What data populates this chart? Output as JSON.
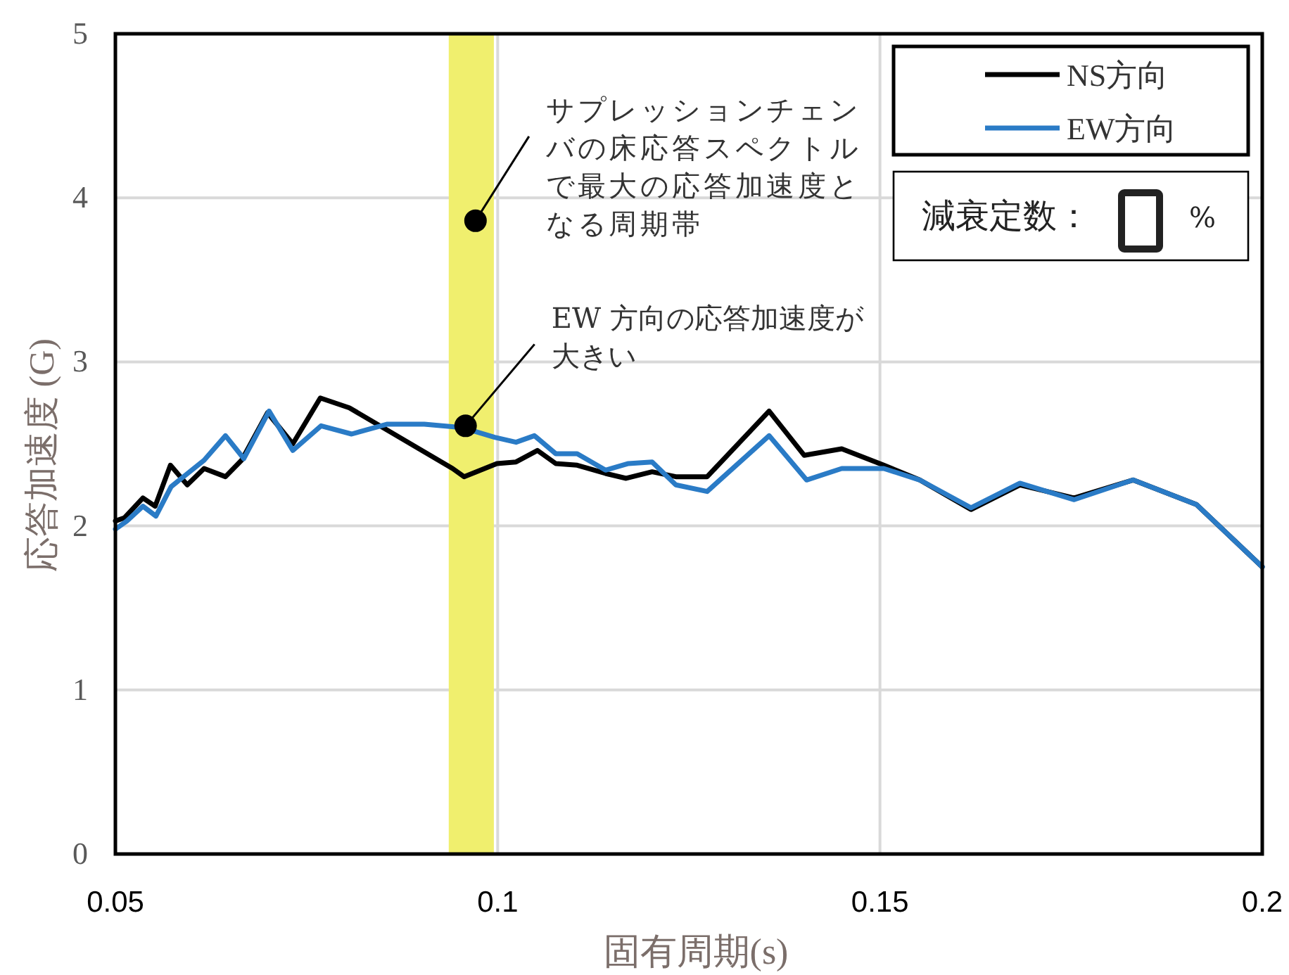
{
  "chart_data": {
    "type": "line",
    "xlabel": "固有周期(s)",
    "ylabel": "応答加速度 (G)",
    "xlim": [
      0.05,
      0.2
    ],
    "ylim": [
      0,
      5
    ],
    "xticks": [
      0.05,
      0.1,
      0.15,
      0.2
    ],
    "yticks": [
      0,
      1,
      2,
      3,
      4,
      5
    ],
    "grid": true,
    "legend": "top right",
    "series": [
      {
        "name": "NS方向",
        "color": "#000000",
        "x": [
          0.05,
          0.0512,
          0.0536,
          0.0552,
          0.0572,
          0.0594,
          0.0616,
          0.0644,
          0.0665,
          0.0699,
          0.0732,
          0.0768,
          0.0806,
          0.0941,
          0.0956,
          0.0999,
          0.1024,
          0.1052,
          0.1076,
          0.1104,
          0.1141,
          0.1168,
          0.1202,
          0.1233,
          0.1274,
          0.1355,
          0.1401,
          0.145,
          0.1505,
          0.1552,
          0.1619,
          0.1683,
          0.1754,
          0.1831,
          0.1914,
          0.2
        ],
        "values": [
          2.03,
          2.05,
          2.17,
          2.12,
          2.37,
          2.25,
          2.35,
          2.3,
          2.4,
          2.69,
          2.5,
          2.78,
          2.72,
          2.35,
          2.3,
          2.38,
          2.39,
          2.46,
          2.38,
          2.37,
          2.32,
          2.29,
          2.33,
          2.3,
          2.3,
          2.7,
          2.43,
          2.47,
          2.37,
          2.28,
          2.1,
          2.25,
          2.17,
          2.28,
          2.13,
          1.75
        ]
      },
      {
        "name": "EW方向",
        "color": "#2a7bc6",
        "x": [
          0.05,
          0.0515,
          0.0536,
          0.0553,
          0.0573,
          0.0616,
          0.0644,
          0.0668,
          0.0701,
          0.0732,
          0.0769,
          0.0809,
          0.0855,
          0.0904,
          0.0953,
          0.0996,
          0.1024,
          0.1048,
          0.1076,
          0.1104,
          0.1141,
          0.1171,
          0.1202,
          0.1233,
          0.1274,
          0.1355,
          0.1404,
          0.145,
          0.1505,
          0.1552,
          0.1619,
          0.1683,
          0.1754,
          0.1831,
          0.1914,
          0.2
        ],
        "values": [
          1.98,
          2.03,
          2.12,
          2.06,
          2.24,
          2.4,
          2.55,
          2.41,
          2.7,
          2.46,
          2.61,
          2.56,
          2.62,
          2.62,
          2.6,
          2.54,
          2.51,
          2.55,
          2.44,
          2.44,
          2.34,
          2.38,
          2.39,
          2.25,
          2.21,
          2.55,
          2.28,
          2.35,
          2.35,
          2.28,
          2.11,
          2.26,
          2.16,
          2.28,
          2.13,
          1.75
        ]
      }
    ],
    "bands": [
      {
        "axis": "x",
        "from": 0.0936,
        "to": 0.0995,
        "color": "#f0ef6e"
      }
    ],
    "annotations": [
      {
        "text": "サプレッションチェンバの床応答スペクトルで最大の応答加速度となる周期帯",
        "x": 0.0971,
        "y": 3.86
      },
      {
        "text": "EW 方向の応答加速度が大きい",
        "x": 0.0958,
        "y": 2.61
      },
      "減衰定数：",
      "%"
    ]
  }
}
